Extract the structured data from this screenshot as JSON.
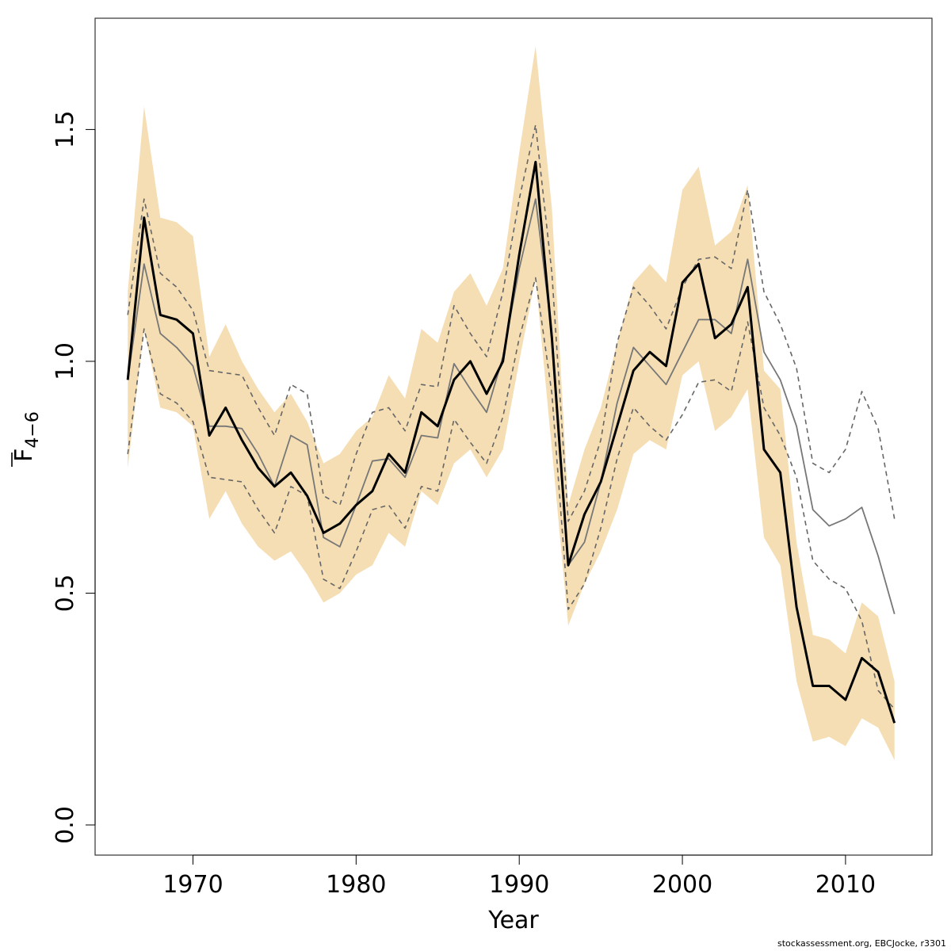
{
  "chart_data": {
    "type": "line",
    "xlabel": "Year",
    "ylabel": {
      "main": "F",
      "subscript": "4−6"
    },
    "xlim": [
      1964,
      2015.3
    ],
    "ylim": [
      -0.065,
      1.74
    ],
    "x_ticks": [
      1970,
      1980,
      1990,
      2000,
      2010
    ],
    "y_ticks": [
      0.0,
      0.5,
      1.0,
      1.5
    ],
    "y_tick_labels": [
      "0.0",
      "0.5",
      "1.0",
      "1.5"
    ],
    "grid": false,
    "legend": "none",
    "colors": {
      "band": "#F5DEB3",
      "main_line": "#000000",
      "retro_line": "#777777",
      "retro_bounds": "#666666"
    },
    "years": [
      1966,
      1967,
      1968,
      1969,
      1970,
      1971,
      1972,
      1973,
      1974,
      1975,
      1976,
      1977,
      1978,
      1979,
      1980,
      1981,
      1982,
      1983,
      1984,
      1985,
      1986,
      1987,
      1988,
      1989,
      1990,
      1991,
      1992,
      1993,
      1994,
      1995,
      1996,
      1997,
      1998,
      1999,
      2000,
      2001,
      2002,
      2003,
      2004,
      2005,
      2006,
      2007,
      2008,
      2009,
      2010,
      2011,
      2012,
      2013
    ],
    "series": [
      {
        "role": "estimate",
        "values": [
          0.96,
          1.31,
          1.1,
          1.09,
          1.06,
          0.84,
          0.9,
          0.83,
          0.77,
          0.73,
          0.76,
          0.71,
          0.63,
          0.65,
          0.69,
          0.72,
          0.8,
          0.76,
          0.89,
          0.86,
          0.96,
          1.0,
          0.93,
          1.0,
          1.23,
          1.43,
          1.05,
          0.56,
          0.67,
          0.74,
          0.86,
          0.98,
          1.02,
          0.99,
          1.17,
          1.21,
          1.05,
          1.08,
          1.16,
          0.81,
          0.76,
          0.47,
          0.3,
          0.3,
          0.27,
          0.36,
          0.33,
          0.22
        ]
      },
      {
        "role": "band_upper",
        "values": [
          1.15,
          1.55,
          1.31,
          1.3,
          1.27,
          1.01,
          1.08,
          1.0,
          0.94,
          0.89,
          0.93,
          0.87,
          0.78,
          0.8,
          0.85,
          0.88,
          0.97,
          0.92,
          1.07,
          1.04,
          1.15,
          1.19,
          1.12,
          1.2,
          1.45,
          1.68,
          1.33,
          0.69,
          0.81,
          0.9,
          1.04,
          1.17,
          1.21,
          1.17,
          1.37,
          1.42,
          1.25,
          1.28,
          1.38,
          0.98,
          0.94,
          0.61,
          0.41,
          0.4,
          0.37,
          0.48,
          0.45,
          0.31
        ]
      },
      {
        "role": "band_lower",
        "values": [
          0.77,
          1.07,
          0.9,
          0.89,
          0.86,
          0.66,
          0.72,
          0.65,
          0.6,
          0.57,
          0.59,
          0.54,
          0.48,
          0.5,
          0.54,
          0.56,
          0.63,
          0.6,
          0.72,
          0.69,
          0.78,
          0.81,
          0.75,
          0.81,
          1.0,
          1.18,
          0.81,
          0.43,
          0.52,
          0.59,
          0.68,
          0.8,
          0.83,
          0.81,
          0.97,
          1.0,
          0.85,
          0.88,
          0.94,
          0.62,
          0.56,
          0.31,
          0.18,
          0.19,
          0.17,
          0.23,
          0.21,
          0.14
        ]
      },
      {
        "role": "retro_estimate",
        "values": [
          0.96,
          1.21,
          1.06,
          1.03,
          0.99,
          0.86,
          0.86,
          0.855,
          0.8,
          0.73,
          0.84,
          0.82,
          0.62,
          0.6,
          0.69,
          0.785,
          0.79,
          0.75,
          0.84,
          0.835,
          0.995,
          0.94,
          0.89,
          1.01,
          1.2,
          1.35,
          1.06,
          0.56,
          0.61,
          0.74,
          0.91,
          1.03,
          0.99,
          0.95,
          1.02,
          1.09,
          1.09,
          1.06,
          1.22,
          1.02,
          0.96,
          0.86,
          0.68,
          0.645,
          0.66,
          0.685,
          0.58,
          0.455
        ]
      },
      {
        "role": "retro_upper",
        "values": [
          1.1,
          1.35,
          1.19,
          1.16,
          1.11,
          0.98,
          0.975,
          0.97,
          0.9,
          0.84,
          0.95,
          0.93,
          0.71,
          0.69,
          0.8,
          0.89,
          0.9,
          0.85,
          0.95,
          0.945,
          1.12,
          1.06,
          1.01,
          1.15,
          1.35,
          1.51,
          1.19,
          0.655,
          0.72,
          0.83,
          1.04,
          1.16,
          1.12,
          1.07,
          1.16,
          1.22,
          1.225,
          1.2,
          1.37,
          1.15,
          1.08,
          0.985,
          0.78,
          0.76,
          0.81,
          0.935,
          0.855,
          0.66
        ]
      },
      {
        "role": "retro_lower",
        "values": [
          0.8,
          1.07,
          0.93,
          0.91,
          0.87,
          0.75,
          0.745,
          0.74,
          0.68,
          0.63,
          0.73,
          0.71,
          0.53,
          0.51,
          0.59,
          0.68,
          0.69,
          0.64,
          0.73,
          0.72,
          0.875,
          0.825,
          0.78,
          0.88,
          1.05,
          1.18,
          0.93,
          0.465,
          0.52,
          0.64,
          0.79,
          0.9,
          0.86,
          0.83,
          0.885,
          0.955,
          0.96,
          0.935,
          1.085,
          0.9,
          0.84,
          0.75,
          0.57,
          0.53,
          0.51,
          0.44,
          0.29,
          0.25
        ]
      }
    ]
  },
  "credit": "stockassessment.org, EBCJocke, r3301"
}
